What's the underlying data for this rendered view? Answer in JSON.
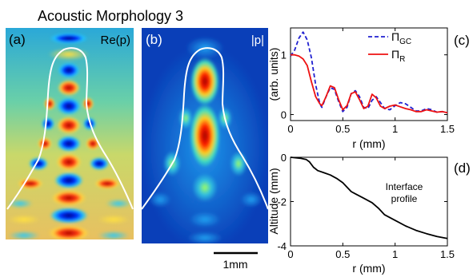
{
  "figure_title": "Acoustic Morphology 3",
  "scale_bar_label": "1mm",
  "panels": {
    "a": {
      "label": "(a)",
      "quantity": "Re(p)"
    },
    "b": {
      "label": "(b)",
      "quantity": "|p|"
    },
    "c": {
      "label": "(c)"
    },
    "d": {
      "label": "(d)"
    }
  },
  "colors": {
    "gc_series": "#2020d0",
    "r_series": "#ee1111",
    "interface_curve": "#ffffff",
    "profile_line": "#000000"
  },
  "chart_data": [
    {
      "panel": "c",
      "type": "line",
      "ylabel": "(arb. units)",
      "xlabel": "r (mm)",
      "xlim": [
        0,
        1.5
      ],
      "ylim": [
        -0.1,
        1.45
      ],
      "xticks": [
        0,
        0.5,
        1,
        1.5
      ],
      "xtick_labels": [
        "0",
        "0.5",
        "1",
        "1.5"
      ],
      "yticks": [
        0,
        1
      ],
      "ytick_labels": [
        "0",
        "1"
      ],
      "grid": false,
      "legend_position": "top-right",
      "series": [
        {
          "name": "Π",
          "subscript": "GC",
          "style": "dashed",
          "color": "#2020d0",
          "points": [
            [
              0,
              0.98
            ],
            [
              0.04,
              1.08
            ],
            [
              0.08,
              1.28
            ],
            [
              0.12,
              1.38
            ],
            [
              0.16,
              1.25
            ],
            [
              0.2,
              0.95
            ],
            [
              0.24,
              0.5
            ],
            [
              0.28,
              0.18
            ],
            [
              0.3,
              0.12
            ],
            [
              0.34,
              0.3
            ],
            [
              0.38,
              0.45
            ],
            [
              0.42,
              0.42
            ],
            [
              0.46,
              0.22
            ],
            [
              0.5,
              0.05
            ],
            [
              0.54,
              0.12
            ],
            [
              0.58,
              0.35
            ],
            [
              0.62,
              0.4
            ],
            [
              0.66,
              0.3
            ],
            [
              0.7,
              0.12
            ],
            [
              0.74,
              0.1
            ],
            [
              0.78,
              0.24
            ],
            [
              0.82,
              0.3
            ],
            [
              0.86,
              0.2
            ],
            [
              0.9,
              0.1
            ],
            [
              0.95,
              0.08
            ],
            [
              1.0,
              0.15
            ],
            [
              1.05,
              0.2
            ],
            [
              1.1,
              0.18
            ],
            [
              1.15,
              0.12
            ],
            [
              1.2,
              0.06
            ],
            [
              1.25,
              0.06
            ],
            [
              1.3,
              0.1
            ],
            [
              1.35,
              0.08
            ],
            [
              1.4,
              0.04
            ],
            [
              1.45,
              0.05
            ],
            [
              1.5,
              0.03
            ]
          ]
        },
        {
          "name": "Π",
          "subscript": "R",
          "style": "solid",
          "color": "#ee1111",
          "points": [
            [
              0,
              1.0
            ],
            [
              0.04,
              1.0
            ],
            [
              0.08,
              0.98
            ],
            [
              0.12,
              0.93
            ],
            [
              0.16,
              0.82
            ],
            [
              0.2,
              0.55
            ],
            [
              0.24,
              0.3
            ],
            [
              0.28,
              0.18
            ],
            [
              0.3,
              0.15
            ],
            [
              0.34,
              0.3
            ],
            [
              0.38,
              0.48
            ],
            [
              0.42,
              0.45
            ],
            [
              0.46,
              0.25
            ],
            [
              0.5,
              0.08
            ],
            [
              0.54,
              0.15
            ],
            [
              0.58,
              0.35
            ],
            [
              0.62,
              0.38
            ],
            [
              0.66,
              0.25
            ],
            [
              0.7,
              0.1
            ],
            [
              0.74,
              0.14
            ],
            [
              0.78,
              0.34
            ],
            [
              0.82,
              0.28
            ],
            [
              0.86,
              0.14
            ],
            [
              0.9,
              0.1
            ],
            [
              0.95,
              0.14
            ],
            [
              1.0,
              0.16
            ],
            [
              1.05,
              0.13
            ],
            [
              1.1,
              0.1
            ],
            [
              1.15,
              0.08
            ],
            [
              1.2,
              0.05
            ],
            [
              1.25,
              0.05
            ],
            [
              1.3,
              0.08
            ],
            [
              1.35,
              0.06
            ],
            [
              1.4,
              0.04
            ],
            [
              1.45,
              0.05
            ],
            [
              1.5,
              0.03
            ]
          ]
        }
      ]
    },
    {
      "panel": "d",
      "type": "line",
      "ylabel": "Altitude (mm)",
      "xlabel": "r (mm)",
      "xlim": [
        0,
        1.5
      ],
      "ylim": [
        -4,
        0
      ],
      "xticks": [
        0,
        0.5,
        1,
        1.5
      ],
      "xtick_labels": [
        "0",
        "0.5",
        "1",
        "1.5"
      ],
      "yticks": [
        0,
        -2,
        -4
      ],
      "ytick_labels": [
        "0",
        "-2",
        "-4"
      ],
      "grid": false,
      "annotation": [
        "Interface",
        "profile"
      ],
      "series": [
        {
          "color": "#000000",
          "style": "solid",
          "points": [
            [
              0,
              0
            ],
            [
              0.1,
              -0.05
            ],
            [
              0.15,
              -0.1
            ],
            [
              0.18,
              -0.2
            ],
            [
              0.22,
              -0.45
            ],
            [
              0.26,
              -0.6
            ],
            [
              0.32,
              -0.7
            ],
            [
              0.38,
              -0.8
            ],
            [
              0.44,
              -0.95
            ],
            [
              0.5,
              -1.15
            ],
            [
              0.54,
              -1.35
            ],
            [
              0.58,
              -1.55
            ],
            [
              0.62,
              -1.65
            ],
            [
              0.7,
              -1.85
            ],
            [
              0.78,
              -2.05
            ],
            [
              0.84,
              -2.3
            ],
            [
              0.9,
              -2.6
            ],
            [
              1.0,
              -2.85
            ],
            [
              1.1,
              -3.1
            ],
            [
              1.2,
              -3.3
            ],
            [
              1.3,
              -3.45
            ],
            [
              1.4,
              -3.58
            ],
            [
              1.5,
              -3.67
            ]
          ]
        }
      ]
    }
  ]
}
